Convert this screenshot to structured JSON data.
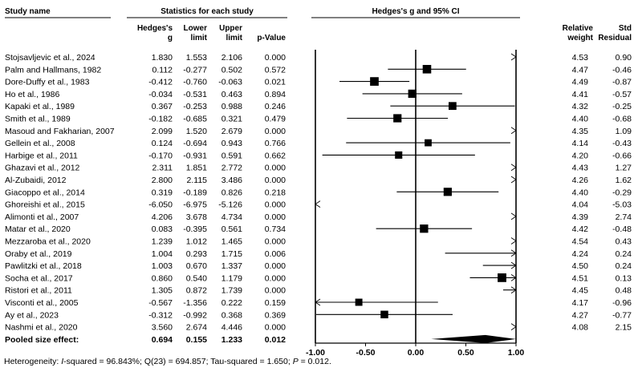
{
  "headers": {
    "study_name": "Study name",
    "stats": "Statistics for each study",
    "plot": "Hedges's g and 95% CI",
    "col_g_1": "Hedges's",
    "col_g_2": "g",
    "col_lower_1": "Lower",
    "col_lower_2": "limit",
    "col_upper_1": "Upper",
    "col_upper_2": "limit",
    "col_p": "p-Value",
    "col_weight_1": "Relative",
    "col_weight_2": "weight",
    "col_resid_1": "Std",
    "col_resid_2": "Residual"
  },
  "chart_data": {
    "type": "forest",
    "title": "Hedges's g and 95% CI",
    "xlim": [
      -1.0,
      1.0
    ],
    "xticks": [
      "-1.00",
      "-0.50",
      "0.00",
      "0.50",
      "1.00"
    ],
    "xtick_values": [
      -1.0,
      -0.5,
      0.0,
      0.5,
      1.0
    ],
    "studies": [
      {
        "name": "Stojsavljevic et al., 2024",
        "g": "1.830",
        "lower": "1.553",
        "upper": "2.106",
        "p": "0.000",
        "weight": "4.53",
        "resid": "0.90"
      },
      {
        "name": "Palm and Hallmans, 1982",
        "g": "0.112",
        "lower": "-0.277",
        "upper": "0.502",
        "p": "0.572",
        "weight": "4.47",
        "resid": "-0.46"
      },
      {
        "name": "Dore-Duffy et al., 1983",
        "g": "-0.412",
        "lower": "-0.760",
        "upper": "-0.063",
        "p": "0.021",
        "weight": "4.49",
        "resid": "-0.87"
      },
      {
        "name": "Ho et al., 1986",
        "g": "-0.034",
        "lower": "-0.531",
        "upper": "0.463",
        "p": "0.894",
        "weight": "4.41",
        "resid": "-0.57"
      },
      {
        "name": "Kapaki et al., 1989",
        "g": "0.367",
        "lower": "-0.253",
        "upper": "0.988",
        "p": "0.246",
        "weight": "4.32",
        "resid": "-0.25"
      },
      {
        "name": "Smith et al., 1989",
        "g": "-0.182",
        "lower": "-0.685",
        "upper": "0.321",
        "p": "0.479",
        "weight": "4.40",
        "resid": "-0.68"
      },
      {
        "name": "Masoud and Fakharian, 2007",
        "g": "2.099",
        "lower": "1.520",
        "upper": "2.679",
        "p": "0.000",
        "weight": "4.35",
        "resid": "1.09"
      },
      {
        "name": "Gellein et al., 2008",
        "g": "0.124",
        "lower": "-0.694",
        "upper": "0.943",
        "p": "0.766",
        "weight": "4.14",
        "resid": "-0.43"
      },
      {
        "name": "Harbige et al., 2011",
        "g": "-0.170",
        "lower": "-0.931",
        "upper": "0.591",
        "p": "0.662",
        "weight": "4.20",
        "resid": "-0.66"
      },
      {
        "name": "Ghazavi et al., 2012",
        "g": "2.311",
        "lower": "1.851",
        "upper": "2.772",
        "p": "0.000",
        "weight": "4.43",
        "resid": "1.27"
      },
      {
        "name": "Al-Zubaidi, 2012",
        "g": "2.800",
        "lower": "2.115",
        "upper": "3.486",
        "p": "0.000",
        "weight": "4.26",
        "resid": "1.62"
      },
      {
        "name": "Giacoppo et al., 2014",
        "g": "0.319",
        "lower": "-0.189",
        "upper": "0.826",
        "p": "0.218",
        "weight": "4.40",
        "resid": "-0.29"
      },
      {
        "name": "Ghoreishi et al., 2015",
        "g": "-6.050",
        "lower": "-6.975",
        "upper": "-5.126",
        "p": "0.000",
        "weight": "4.04",
        "resid": "-5.03"
      },
      {
        "name": "Alimonti et al., 2007",
        "g": "4.206",
        "lower": "3.678",
        "upper": "4.734",
        "p": "0.000",
        "weight": "4.39",
        "resid": "2.74"
      },
      {
        "name": "Matar et al., 2020",
        "g": "0.083",
        "lower": "-0.395",
        "upper": "0.561",
        "p": "0.734",
        "weight": "4.42",
        "resid": "-0.48"
      },
      {
        "name": "Mezzaroba et al., 2020",
        "g": "1.239",
        "lower": "1.012",
        "upper": "1.465",
        "p": "0.000",
        "weight": "4.54",
        "resid": "0.43"
      },
      {
        "name": "Oraby et al., 2019",
        "g": "1.004",
        "lower": "0.293",
        "upper": "1.715",
        "p": "0.006",
        "weight": "4.24",
        "resid": "0.24"
      },
      {
        "name": "Pawlitzki et al., 2018",
        "g": "1.003",
        "lower": "0.670",
        "upper": "1.337",
        "p": "0.000",
        "weight": "4.50",
        "resid": "0.24"
      },
      {
        "name": "Socha et al., 2017",
        "g": "0.860",
        "lower": "0.540",
        "upper": "1.179",
        "p": "0.000",
        "weight": "4.51",
        "resid": "0.13"
      },
      {
        "name": "Ristori et al., 2011",
        "g": "1.305",
        "lower": "0.872",
        "upper": "1.739",
        "p": "0.000",
        "weight": "4.45",
        "resid": "0.48"
      },
      {
        "name": "Visconti et al., 2005",
        "g": "-0.567",
        "lower": "-1.356",
        "upper": "0.222",
        "p": "0.159",
        "weight": "4.17",
        "resid": "-0.96"
      },
      {
        "name": "Ay et al., 2023",
        "g": "-0.312",
        "lower": "-0.992",
        "upper": "0.368",
        "p": "0.369",
        "weight": "4.27",
        "resid": "-0.77"
      },
      {
        "name": "Nashmi et al., 2020",
        "g": "3.560",
        "lower": "2.674",
        "upper": "4.446",
        "p": "0.000",
        "weight": "4.08",
        "resid": "2.15"
      }
    ],
    "pooled": {
      "name": "Pooled size effect:",
      "g": "0.694",
      "lower": "0.155",
      "upper": "1.233",
      "p": "0.012"
    }
  },
  "footer": {
    "prefix": "Heterogeneity: ",
    "i2_label": "I",
    "i2_value": "-squared = 96.843%; Q(23) = 694.857; Tau-squared = 1.650; ",
    "p_label": "P",
    "p_value": " = 0.012."
  }
}
